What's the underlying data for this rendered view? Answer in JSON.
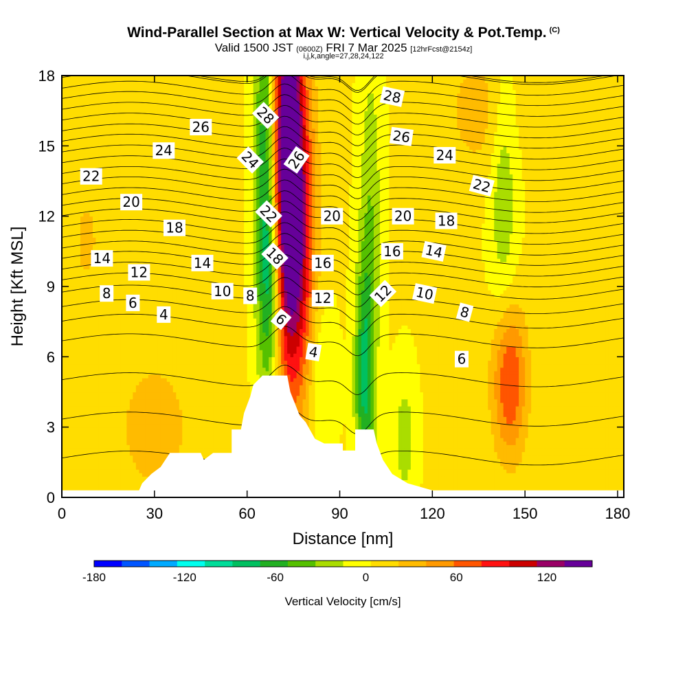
{
  "header": {
    "title": "Wind-Parallel Section at Max W: Vertical Velocity & Pot.Temp.",
    "title_mark": "(C)",
    "valid_main": "Valid 1500 JST",
    "valid_utc": "(0600Z)",
    "valid_date": "FRI 7 Mar 2025",
    "valid_fcst": "[12hrFcst@2154z]",
    "indices": "i,j,k,angle=27,28,24,122"
  },
  "chart_data": {
    "type": "heatmap",
    "xlabel": "Distance [nm]",
    "ylabel": "Height [Kft MSL]",
    "xlim": [
      0,
      182
    ],
    "ylim": [
      0,
      18
    ],
    "x_ticks": [
      0,
      30,
      60,
      90,
      120,
      150,
      180
    ],
    "y_ticks": [
      0,
      3,
      6,
      9,
      12,
      15,
      18
    ],
    "terrain_profile": [
      [
        0,
        0.3
      ],
      [
        25,
        0.3
      ],
      [
        26,
        0.6
      ],
      [
        29,
        1.0
      ],
      [
        32,
        1.3
      ],
      [
        35,
        1.9
      ],
      [
        45,
        1.9
      ],
      [
        46,
        1.6
      ],
      [
        49,
        1.9
      ],
      [
        55,
        1.9
      ],
      [
        55,
        2.9
      ],
      [
        58,
        2.9
      ],
      [
        59,
        3.6
      ],
      [
        61,
        4.3
      ],
      [
        62,
        4.8
      ],
      [
        65,
        5.2
      ],
      [
        73,
        5.2
      ],
      [
        74,
        4.5
      ],
      [
        77,
        3.5
      ],
      [
        79,
        3.2
      ],
      [
        82,
        2.5
      ],
      [
        85,
        2.3
      ],
      [
        91,
        2.3
      ],
      [
        91,
        2.0
      ],
      [
        95,
        2.0
      ],
      [
        95,
        2.9
      ],
      [
        101,
        2.9
      ],
      [
        102,
        2.3
      ],
      [
        104,
        1.6
      ],
      [
        107,
        1.0
      ],
      [
        112,
        0.6
      ],
      [
        120,
        0.3
      ],
      [
        182,
        0.3
      ]
    ],
    "colorbar": {
      "title": "Vertical Velocity [cm/s]",
      "tick_labels": [
        -180,
        -120,
        -60,
        0,
        60,
        120
      ],
      "colors": [
        "#0000ff",
        "#0055ff",
        "#00aaff",
        "#00ffee",
        "#00dd99",
        "#00c060",
        "#22b022",
        "#55c000",
        "#aadd00",
        "#ffff00",
        "#ffdd00",
        "#ffbb00",
        "#ff9900",
        "#ff5500",
        "#ff1111",
        "#cc0000",
        "#990066",
        "#660099"
      ],
      "vmin": -180,
      "vmax": 150
    },
    "velocity_features": [
      {
        "x": 73,
        "y": 14.5,
        "w": 155,
        "sx": 3.5,
        "sy": 6
      },
      {
        "x": 77,
        "y": 11,
        "w": 80,
        "sx": 4,
        "sy": 5
      },
      {
        "x": 66,
        "y": 14,
        "w": -80,
        "sx": 2.5,
        "sy": 6
      },
      {
        "x": 68,
        "y": 9,
        "w": -50,
        "sx": 2.5,
        "sy": 3
      },
      {
        "x": 98,
        "y": 5,
        "w": -75,
        "sx": 2.2,
        "sy": 3.5
      },
      {
        "x": 100,
        "y": 12,
        "w": -35,
        "sx": 2.5,
        "sy": 5
      },
      {
        "x": 111,
        "y": 2.5,
        "w": -30,
        "sx": 2.5,
        "sy": 2
      },
      {
        "x": 84,
        "y": 5,
        "w": -25,
        "sx": 3,
        "sy": 2.5
      },
      {
        "x": 145,
        "y": 5,
        "w": 75,
        "sx": 4,
        "sy": 2.3
      },
      {
        "x": 143,
        "y": 13,
        "w": -35,
        "sx": 3,
        "sy": 4
      },
      {
        "x": 135,
        "y": 16.5,
        "w": 25,
        "sx": 8,
        "sy": 2
      },
      {
        "x": 30,
        "y": 3,
        "w": 22,
        "sx": 12,
        "sy": 3
      },
      {
        "x": 8,
        "y": 11,
        "w": 18,
        "sx": 6,
        "sy": 3
      }
    ],
    "contour_labels": [
      {
        "text": "28",
        "x": 66,
        "y": 16.3,
        "rot": 45
      },
      {
        "text": "26",
        "x": 45,
        "y": 15.8,
        "rot": 0
      },
      {
        "text": "24",
        "x": 33,
        "y": 14.8,
        "rot": 0
      },
      {
        "text": "22",
        "x": 9.5,
        "y": 13.7,
        "rot": 0
      },
      {
        "text": "24",
        "x": 61,
        "y": 14.4,
        "rot": 45
      },
      {
        "text": "26",
        "x": 76,
        "y": 14.4,
        "rot": -55
      },
      {
        "text": "28",
        "x": 107,
        "y": 17.1,
        "rot": 12
      },
      {
        "text": "26",
        "x": 110,
        "y": 15.4,
        "rot": 8
      },
      {
        "text": "24",
        "x": 124,
        "y": 14.6,
        "rot": 0
      },
      {
        "text": "22",
        "x": 136,
        "y": 13.3,
        "rot": 15
      },
      {
        "text": "20",
        "x": 22.5,
        "y": 12.6,
        "rot": 0
      },
      {
        "text": "22",
        "x": 67,
        "y": 12.1,
        "rot": 45
      },
      {
        "text": "20",
        "x": 87.5,
        "y": 12.0,
        "rot": 0
      },
      {
        "text": "20",
        "x": 110.5,
        "y": 12.0,
        "rot": 0
      },
      {
        "text": "18",
        "x": 124.5,
        "y": 11.8,
        "rot": 0
      },
      {
        "text": "18",
        "x": 36.5,
        "y": 11.5,
        "rot": 0
      },
      {
        "text": "16",
        "x": 107,
        "y": 10.5,
        "rot": 0
      },
      {
        "text": "14",
        "x": 120.5,
        "y": 10.5,
        "rot": 12
      },
      {
        "text": "14",
        "x": 13,
        "y": 10.2,
        "rot": 0
      },
      {
        "text": "18",
        "x": 69,
        "y": 10.3,
        "rot": 45
      },
      {
        "text": "16",
        "x": 84.5,
        "y": 10.0,
        "rot": 0
      },
      {
        "text": "14",
        "x": 45.5,
        "y": 10.0,
        "rot": 0
      },
      {
        "text": "12",
        "x": 25,
        "y": 9.6,
        "rot": 0
      },
      {
        "text": "10",
        "x": 52,
        "y": 8.8,
        "rot": 0
      },
      {
        "text": "10",
        "x": 117.5,
        "y": 8.7,
        "rot": 12
      },
      {
        "text": "12",
        "x": 104,
        "y": 8.7,
        "rot": -45
      },
      {
        "text": "8",
        "x": 14.5,
        "y": 8.7,
        "rot": 0
      },
      {
        "text": "8",
        "x": 61,
        "y": 8.6,
        "rot": 0
      },
      {
        "text": "12",
        "x": 84.5,
        "y": 8.5,
        "rot": 0
      },
      {
        "text": "6",
        "x": 23,
        "y": 8.3,
        "rot": 0
      },
      {
        "text": "4",
        "x": 33,
        "y": 7.8,
        "rot": 0
      },
      {
        "text": "6",
        "x": 71,
        "y": 7.6,
        "rot": 40
      },
      {
        "text": "8",
        "x": 130.5,
        "y": 7.9,
        "rot": 15
      },
      {
        "text": "4",
        "x": 81.5,
        "y": 6.2,
        "rot": 10
      },
      {
        "text": "6",
        "x": 129.5,
        "y": 5.9,
        "rot": 0
      }
    ]
  }
}
